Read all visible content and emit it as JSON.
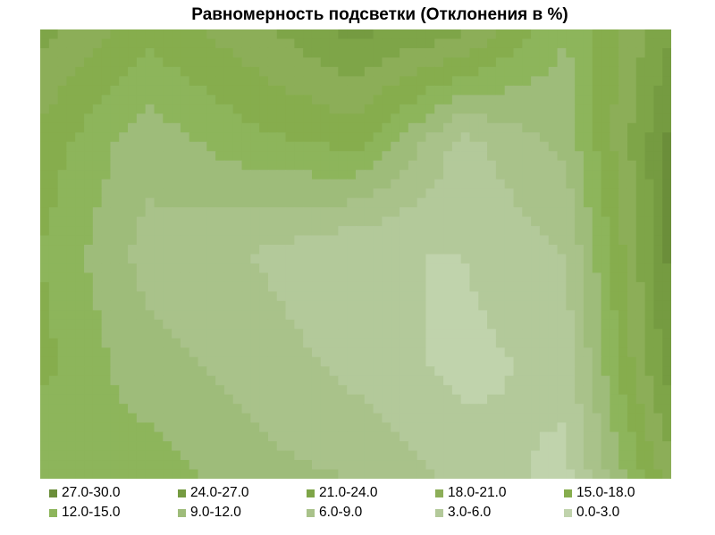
{
  "chart_data": {
    "type": "heatmap",
    "title": "Равномерность подсветки (Отклонения в %)",
    "xlabel": "",
    "ylabel": "",
    "legend_position": "bottom",
    "bands": [
      {
        "label": "27.0-30.0",
        "color": "#6b8e3a"
      },
      {
        "label": "24.0-27.0",
        "color": "#759b41"
      },
      {
        "label": "21.0-24.0",
        "color": "#7ea548"
      },
      {
        "label": "18.0-21.0",
        "color": "#8cae58"
      },
      {
        "label": "15.0-18.0",
        "color": "#86ad4d"
      },
      {
        "label": "12.0-15.0",
        "color": "#8db55b"
      },
      {
        "label": "9.0-12.0",
        "color": "#9ebc7a"
      },
      {
        "label": "6.0-9.0",
        "color": "#a9c28a"
      },
      {
        "label": "3.0-6.0",
        "color": "#b3c99a"
      },
      {
        "label": "0.0-3.0",
        "color": "#c0d3ac"
      }
    ],
    "grid": {
      "cols": 7,
      "rows": 5,
      "values": [
        [
          22,
          16,
          20,
          25,
          22,
          12,
          24
        ],
        [
          17,
          10,
          14,
          16,
          5,
          10,
          28
        ],
        [
          15,
          8,
          6,
          3,
          3,
          6,
          28
        ],
        [
          16,
          10,
          8,
          5,
          2,
          4,
          26
        ],
        [
          12,
          14,
          10,
          9,
          5,
          2,
          20
        ]
      ]
    }
  }
}
